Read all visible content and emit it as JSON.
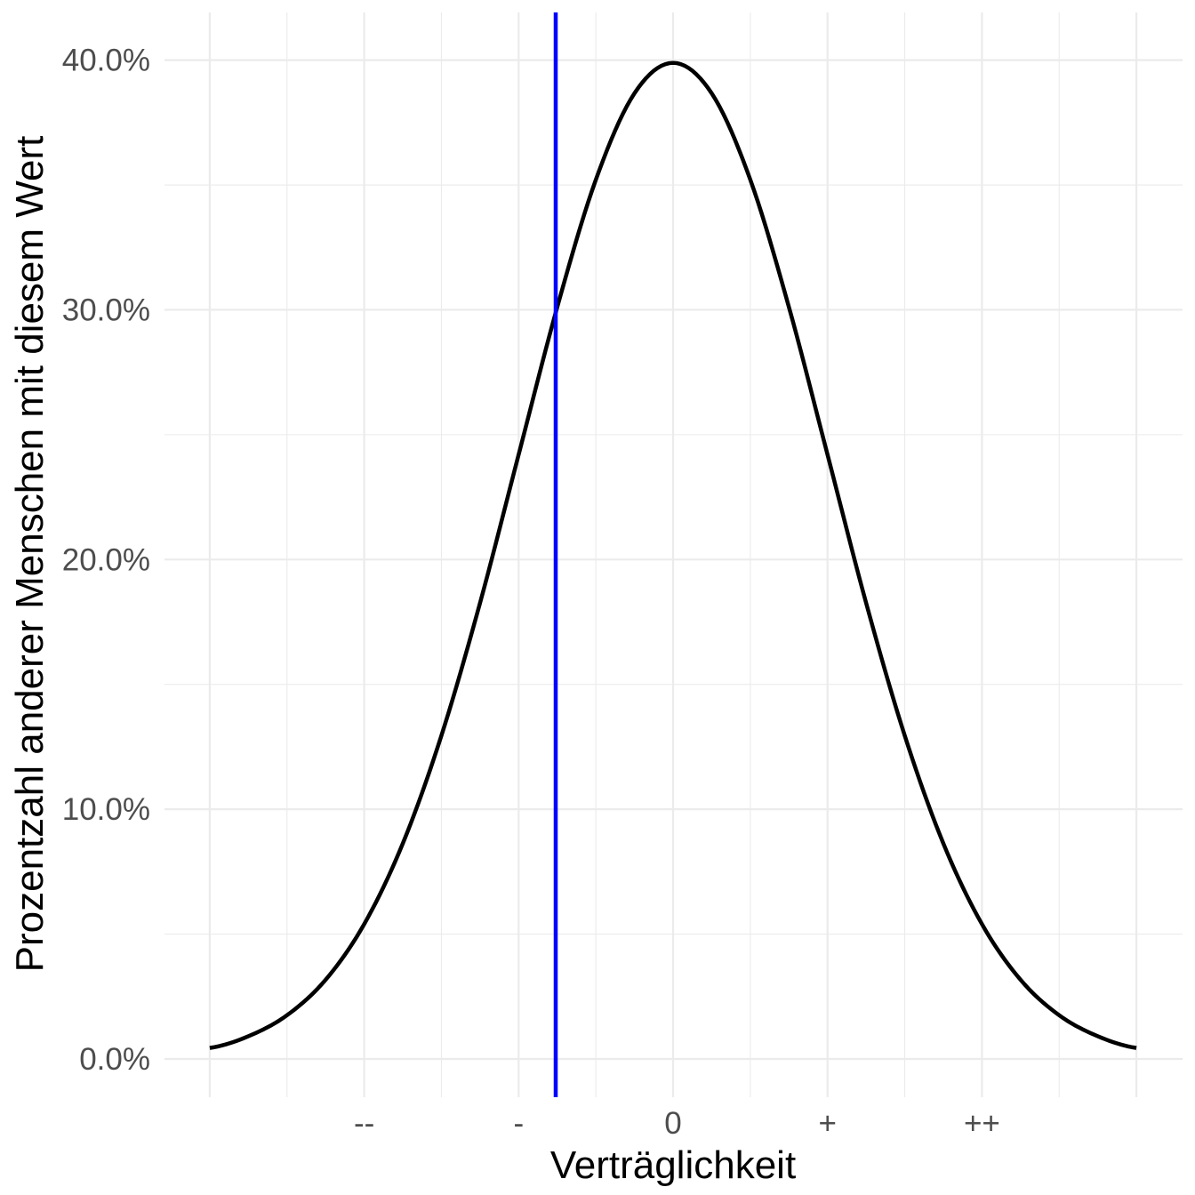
{
  "chart_data": {
    "type": "line",
    "title": "",
    "xlabel": "Verträglichkeit",
    "ylabel": "Prozentzahl anderer Menschen mit diesem Wert",
    "xlim": [
      -3,
      3
    ],
    "ylim": [
      0,
      0.4
    ],
    "x_ticks": [
      {
        "value": -2,
        "label": "--"
      },
      {
        "value": -1,
        "label": "-"
      },
      {
        "value": 0,
        "label": "0"
      },
      {
        "value": 1,
        "label": "+"
      },
      {
        "value": 2,
        "label": "++"
      }
    ],
    "y_ticks": [
      {
        "value": 0.0,
        "label": "0.0%"
      },
      {
        "value": 0.1,
        "label": "10.0%"
      },
      {
        "value": 0.2,
        "label": "20.0%"
      },
      {
        "value": 0.3,
        "label": "30.0%"
      },
      {
        "value": 0.4,
        "label": "40.0%"
      }
    ],
    "series": [
      {
        "color": "#000000",
        "x": [
          -3.0,
          -2.75,
          -2.5,
          -2.25,
          -2.0,
          -1.75,
          -1.5,
          -1.25,
          -1.0,
          -0.75,
          -0.5,
          -0.25,
          0.0,
          0.25,
          0.5,
          0.75,
          1.0,
          1.25,
          1.5,
          1.75,
          2.0,
          2.25,
          2.5,
          2.75,
          3.0
        ],
        "y": [
          0.0044,
          0.0091,
          0.0175,
          0.0317,
          0.054,
          0.0863,
          0.1295,
          0.1826,
          0.242,
          0.3011,
          0.3521,
          0.3867,
          0.3989,
          0.3867,
          0.3521,
          0.3011,
          0.242,
          0.1826,
          0.1295,
          0.0863,
          0.054,
          0.0317,
          0.0175,
          0.0091,
          0.0044
        ]
      }
    ],
    "vline": {
      "x": -0.76,
      "color": "#0000ff"
    },
    "grid": true,
    "legend": "none"
  }
}
